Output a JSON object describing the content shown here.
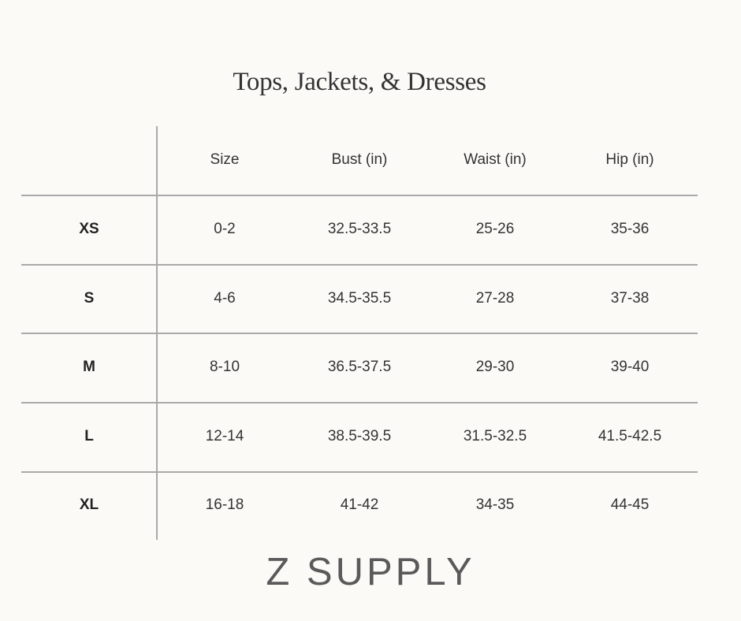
{
  "title": "Tops, Jackets, & Dresses",
  "table": {
    "headers": [
      "",
      "Size",
      "Bust (in)",
      "Waist (in)",
      "Hip (in)"
    ],
    "rows": [
      [
        "XS",
        "0-2",
        "32.5-33.5",
        "25-26",
        "35-36"
      ],
      [
        "S",
        "4-6",
        "34.5-35.5",
        "27-28",
        "37-38"
      ],
      [
        "M",
        "8-10",
        "36.5-37.5",
        "29-30",
        "39-40"
      ],
      [
        "L",
        "12-14",
        "38.5-39.5",
        "31.5-32.5",
        "41.5-42.5"
      ],
      [
        "XL",
        "16-18",
        "41-42",
        "34-35",
        "44-45"
      ]
    ]
  },
  "logo": "Z SUPPLY",
  "colors": {
    "background": "#fcfaf7",
    "lines": "#a9a9a9",
    "text": "#333333"
  }
}
